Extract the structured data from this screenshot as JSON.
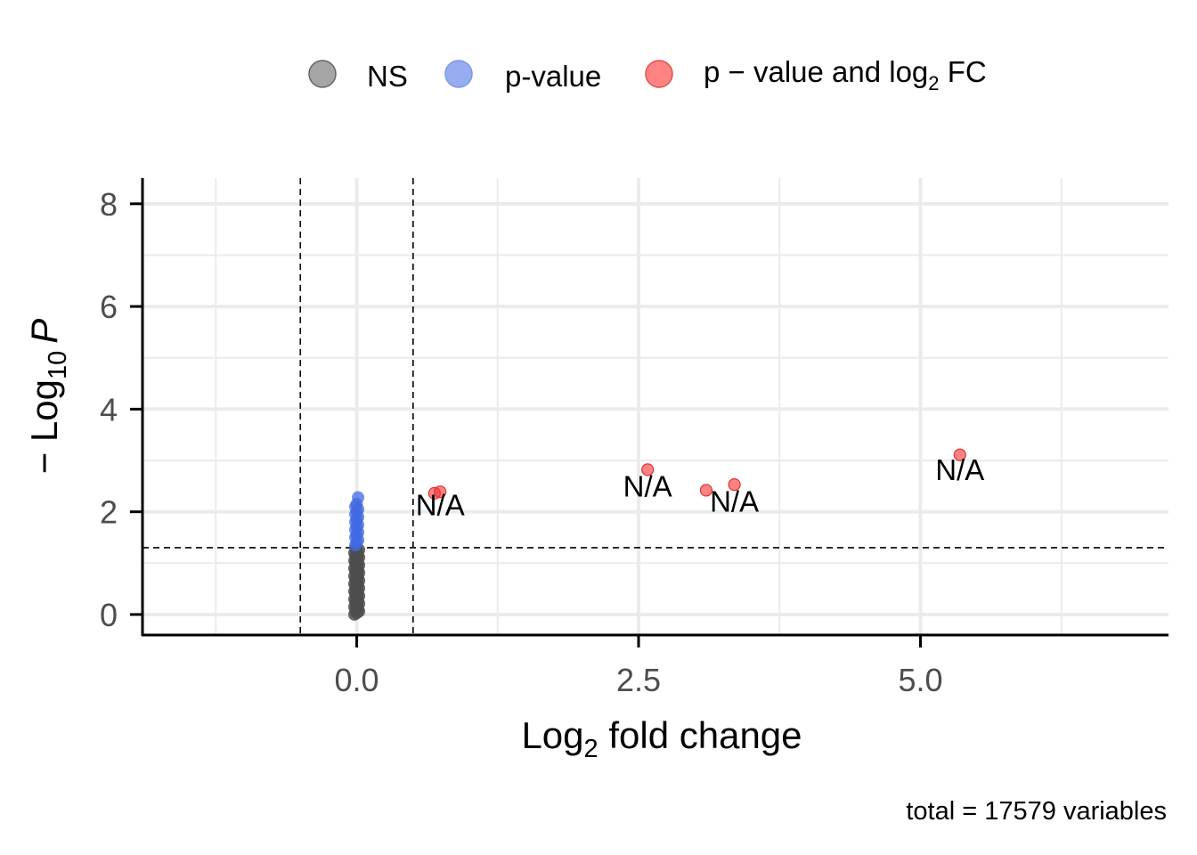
{
  "chart_data": {
    "type": "scatter",
    "xlabel": "Log",
    "xlabel_sub": "2",
    "xlabel_rest": " fold change",
    "ylabel_prefix": "− Log",
    "ylabel_sub": "10",
    "ylabel_var": "P",
    "xlim": [
      -1.9,
      7.2
    ],
    "ylim": [
      -0.4,
      8.5
    ],
    "x_ticks": [
      0.0,
      2.5,
      5.0
    ],
    "x_tick_labels": [
      "0.0",
      "2.5",
      "5.0"
    ],
    "y_ticks": [
      0,
      2,
      4,
      6,
      8
    ],
    "y_tick_labels": [
      "0",
      "2",
      "4",
      "6",
      "8"
    ],
    "x_minor_grid": [
      -1.25,
      1.25,
      3.75,
      6.25
    ],
    "y_minor_grid": [
      1,
      3,
      5,
      7
    ],
    "grid": true,
    "legend_position": "top",
    "fc_cutoff_lines": [
      -0.5,
      0.5
    ],
    "p_cutoff_line": 1.301,
    "legend": [
      {
        "key": "ns",
        "label": "NS",
        "color": "#7f7f7f"
      },
      {
        "key": "pv",
        "label": "p-value",
        "color": "#4169e1"
      },
      {
        "key": "both",
        "label_pre": "p − value and log",
        "label_sub": "2",
        "label_post": " FC",
        "color": "#ff3030"
      }
    ],
    "series": [
      {
        "key": "ns",
        "color": "#4d4d4d",
        "x_jitter": [
          -0.02,
          0.02
        ],
        "y_range": [
          0.0,
          1.3
        ],
        "y_step": 0.03,
        "x": 0.0
      },
      {
        "key": "pv",
        "color": "#4169e1",
        "x": 0.0,
        "y": [
          1.35,
          1.4,
          1.45,
          1.5,
          1.55,
          1.6,
          1.65,
          1.7,
          1.75,
          1.8,
          1.85,
          1.9,
          1.95,
          2.0,
          2.05,
          2.1,
          2.15,
          2.28
        ]
      },
      {
        "key": "both",
        "color": "#ff3030",
        "points": [
          {
            "x": 0.69,
            "y": 2.36
          },
          {
            "x": 0.74,
            "y": 2.39
          },
          {
            "x": 2.58,
            "y": 2.82
          },
          {
            "x": 3.1,
            "y": 2.42
          },
          {
            "x": 3.35,
            "y": 2.53
          },
          {
            "x": 5.35,
            "y": 3.11
          }
        ]
      }
    ],
    "annotations": [
      {
        "text": "N/A",
        "x": 0.74,
        "y": 1.93
      },
      {
        "text": "N/A",
        "x": 2.58,
        "y": 2.3
      },
      {
        "text": "N/A",
        "x": 3.35,
        "y": 2.0
      },
      {
        "text": "N/A",
        "x": 5.35,
        "y": 2.62
      }
    ],
    "caption": "total = 17579 variables"
  }
}
